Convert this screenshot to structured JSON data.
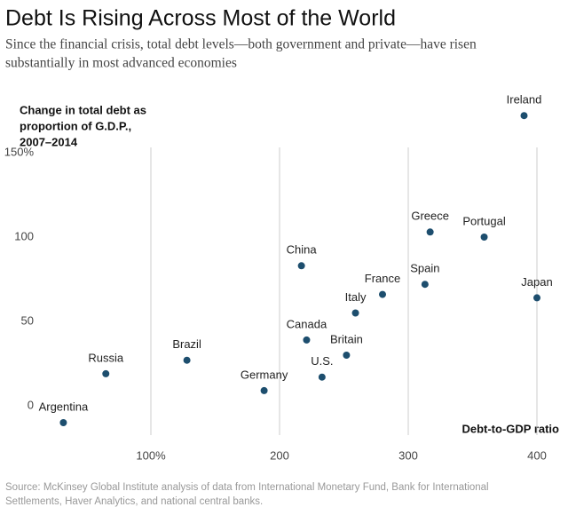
{
  "chart_data": {
    "type": "scatter",
    "title": "Debt Is Rising Across Most of the World",
    "subtitle": [
      "Since the financial crisis, total debt levels—both government and private—have risen",
      "substantially in most advanced economies"
    ],
    "ylabel": [
      "Change in total debt as",
      "proportion of G.D.P.,",
      "2007–2014"
    ],
    "xlabel": "Debt-to-GDP ratio",
    "source": [
      "Source: McKinsey Global Institute analysis of data from International Monetary Fund, Bank for International",
      "Settlements, Haver Analytics, and national central banks."
    ],
    "labels": [
      "Argentina",
      "Russia",
      "Brazil",
      "Germany",
      "China",
      "Canada",
      "U.S.",
      "Britain",
      "Italy",
      "France",
      "Spain",
      "Greece",
      "Portugal",
      "Ireland",
      "Japan"
    ],
    "x": [
      32,
      65,
      128,
      188,
      217,
      221,
      233,
      252,
      259,
      280,
      313,
      317,
      359,
      390,
      400
    ],
    "y": [
      -10,
      19,
      27,
      9,
      83,
      39,
      17,
      30,
      55,
      66,
      72,
      103,
      100,
      172,
      64
    ],
    "color": "#1d4e6e",
    "xlim": [
      0,
      420
    ],
    "ylim": [
      -20,
      180
    ],
    "xticks": [
      {
        "value": 100,
        "label": "100%"
      },
      200,
      300,
      400
    ],
    "yticks": [
      0,
      50,
      100,
      {
        "value": 150,
        "label": "150%"
      }
    ],
    "grid": "x"
  }
}
